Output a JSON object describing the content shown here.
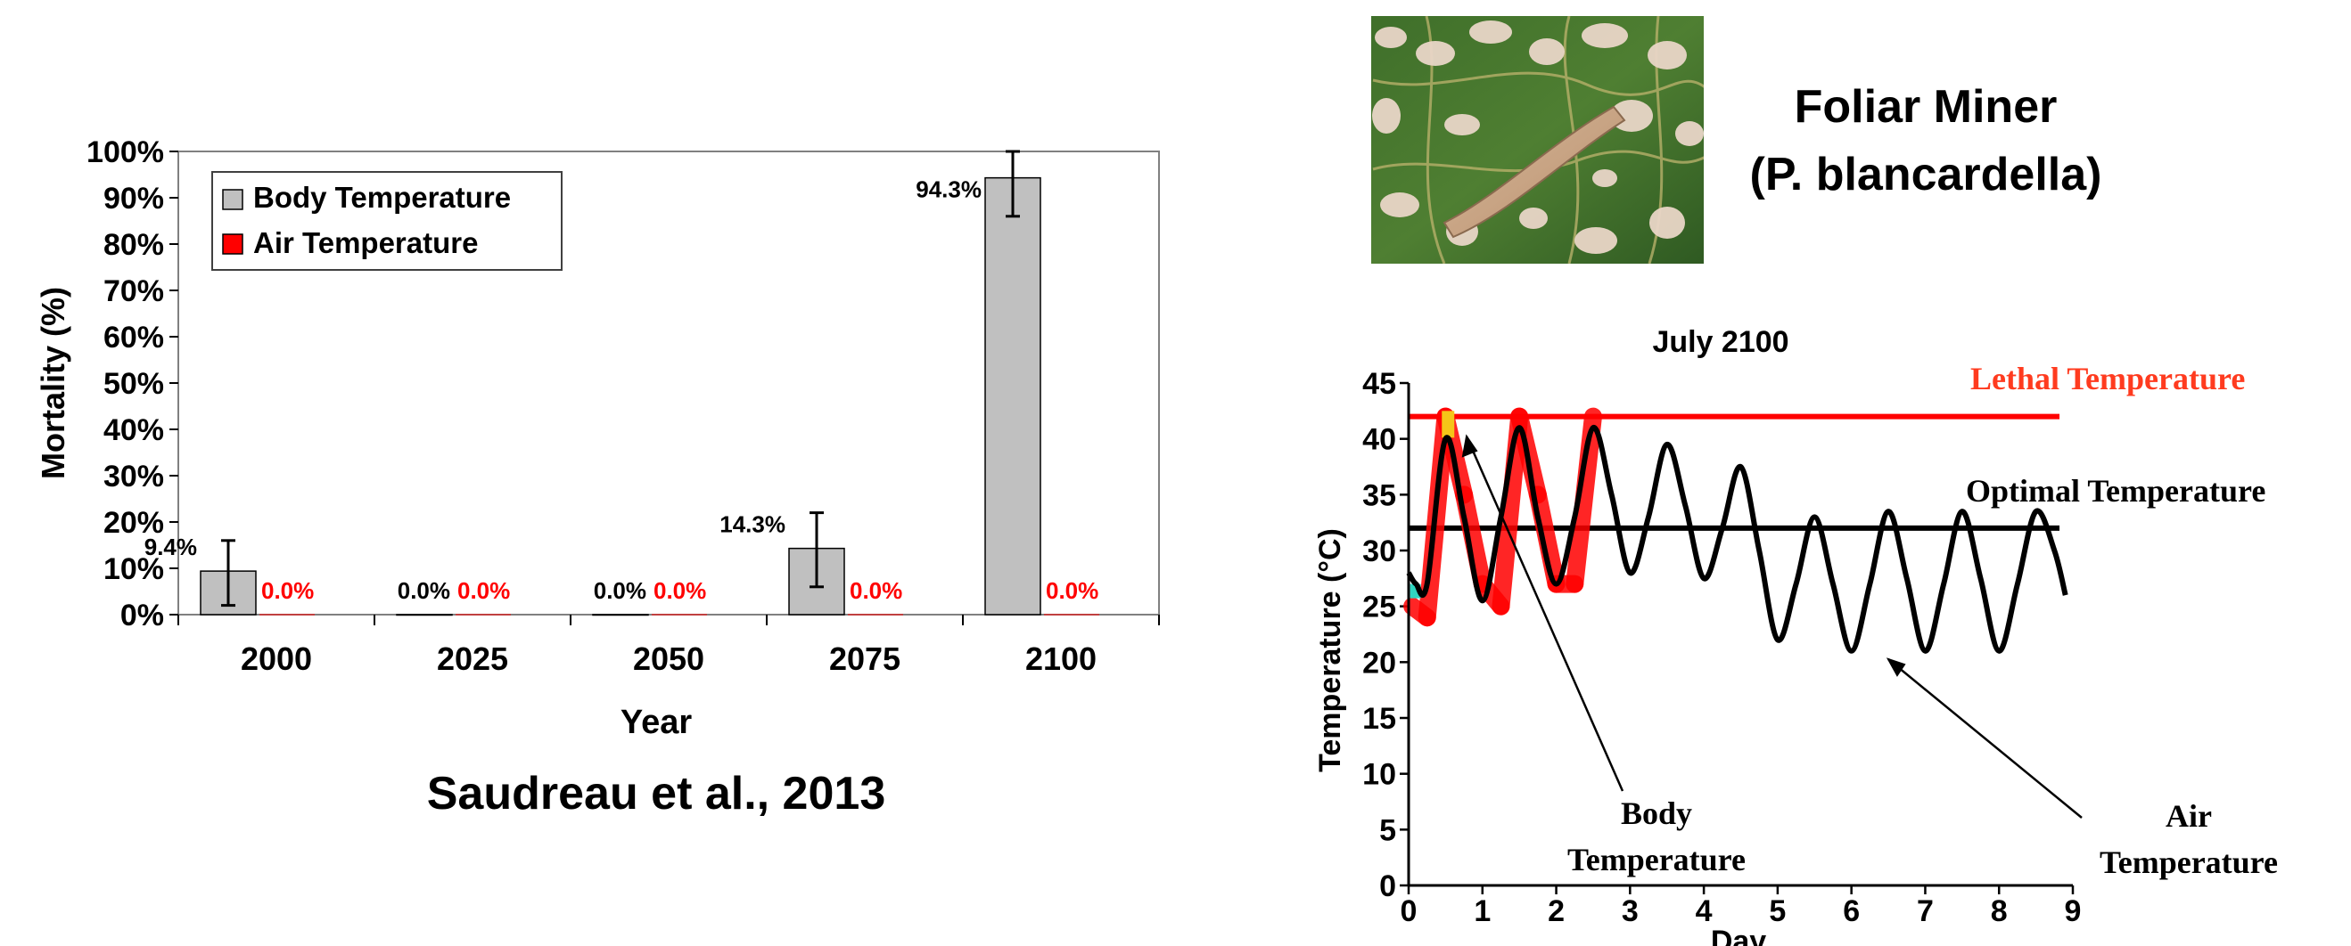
{
  "slide": {
    "citation": "Saudreau et al., 2013",
    "species_line1": "Foliar Miner",
    "species_line2": "(P. blancardella)",
    "photo_icon": "leaf-miner-photo"
  },
  "chart_data": [
    {
      "type": "bar",
      "title": "",
      "xlabel": "Year",
      "ylabel": "Mortality (%)",
      "ylim": [
        0,
        100
      ],
      "yticks": [
        "0%",
        "10%",
        "20%",
        "30%",
        "40%",
        "50%",
        "60%",
        "70%",
        "80%",
        "90%",
        "100%"
      ],
      "categories": [
        "2000",
        "2025",
        "2050",
        "2075",
        "2100"
      ],
      "series": [
        {
          "name": "Body Temperature",
          "color": "#c0c0c0",
          "values": [
            9.4,
            0.0,
            0.0,
            14.3,
            94.3
          ],
          "labels": [
            "9.4%",
            "0.0%",
            "0.0%",
            "14.3%",
            "94.3%"
          ],
          "error_low": [
            2,
            0,
            0,
            6,
            86
          ],
          "error_high": [
            16,
            0,
            0,
            22,
            100
          ]
        },
        {
          "name": "Air Temperature",
          "color": "#ff0000",
          "values": [
            0.0,
            0.0,
            0.0,
            0.0,
            0.0
          ],
          "labels": [
            "0.0%",
            "0.0%",
            "0.0%",
            "0.0%",
            "0.0%"
          ]
        }
      ],
      "legend": "top-left",
      "grid": false
    },
    {
      "type": "line",
      "title": "July 2100",
      "xlabel": "Day",
      "ylabel": "Temperature (°C)",
      "xlim": [
        0,
        9
      ],
      "ylim": [
        0,
        45
      ],
      "xticks": [
        "0",
        "1",
        "2",
        "3",
        "4",
        "5",
        "6",
        "7",
        "8",
        "9"
      ],
      "yticks": [
        "0",
        "5",
        "10",
        "15",
        "20",
        "25",
        "30",
        "35",
        "40",
        "45"
      ],
      "reference_lines": [
        {
          "name": "Lethal Temperature",
          "y": 42,
          "color": "#ff0000"
        },
        {
          "name": "Optimal Temperature",
          "y": 32,
          "color": "#000000"
        }
      ],
      "annotations": [
        {
          "text_line1": "Body",
          "text_line2": "Temperature"
        },
        {
          "text_line1": "Air",
          "text_line2": "Temperature"
        }
      ],
      "series": [
        {
          "name": "Body Temperature",
          "color": "#ff0000",
          "note": "hotspot band near daily maxima/minima on days 0–2.6",
          "x": [
            0.05,
            0.25,
            0.5,
            0.75,
            1.0,
            1.25,
            1.5,
            1.75,
            2.0,
            2.25,
            2.5
          ],
          "y": [
            25,
            24,
            42,
            35,
            27,
            25,
            42,
            35,
            27,
            27,
            42
          ]
        },
        {
          "name": "Air Temperature",
          "color": "#000000",
          "x": [
            0,
            0.1,
            0.25,
            0.5,
            0.75,
            1.0,
            1.25,
            1.5,
            1.75,
            2.0,
            2.25,
            2.5,
            2.75,
            3.0,
            3.25,
            3.5,
            3.75,
            4.0,
            4.25,
            4.5,
            4.75,
            5.0,
            5.25,
            5.5,
            5.75,
            6.0,
            6.25,
            6.5,
            6.75,
            7.0,
            7.25,
            7.5,
            7.75,
            8.0,
            8.25,
            8.5,
            8.75,
            8.9
          ],
          "y": [
            28,
            27,
            27,
            40,
            33,
            25.5,
            33,
            41,
            33,
            27,
            33,
            41,
            35,
            28,
            33,
            39.5,
            34,
            27.5,
            32,
            37.5,
            30,
            22,
            27,
            33,
            27,
            21,
            27,
            33.5,
            27.5,
            21,
            27,
            33.5,
            27.5,
            21,
            27,
            33.5,
            30,
            26
          ]
        }
      ]
    }
  ]
}
